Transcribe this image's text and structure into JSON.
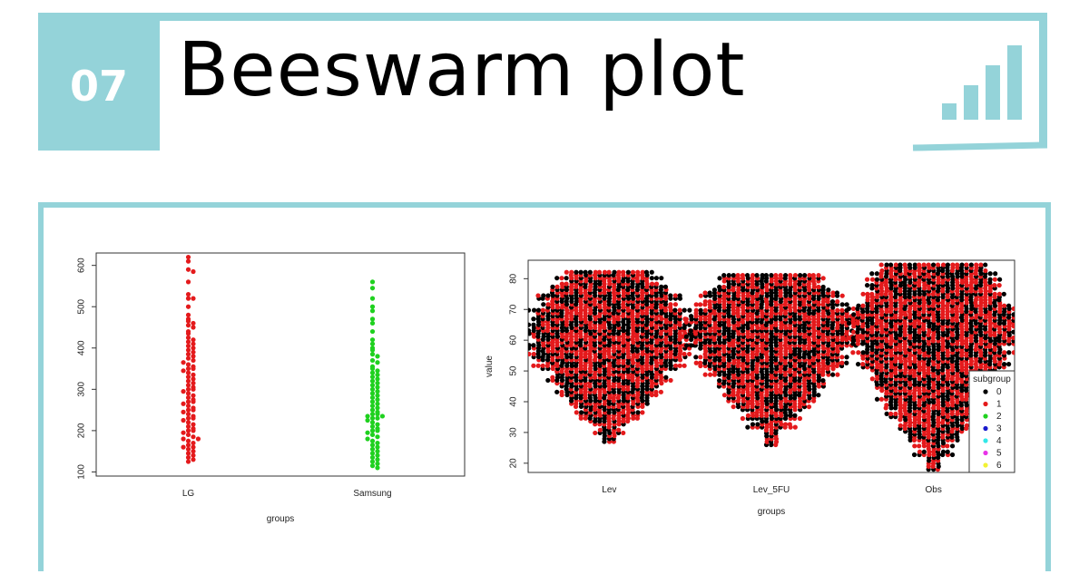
{
  "header": {
    "number": "07",
    "title": "Beeswarm plot",
    "icon": "bar-chart-icon",
    "accent_color": "#94d3d9"
  },
  "chart_data": [
    {
      "type": "scatter",
      "subtype": "beeswarm",
      "xlabel": "groups",
      "ylabel": "",
      "ylim": [
        90,
        630
      ],
      "yticks": [
        100,
        200,
        300,
        400,
        500,
        600
      ],
      "categories": [
        "LG",
        "Samsung"
      ],
      "series": [
        {
          "name": "LG",
          "color": "#e41a1c",
          "values": [
            620,
            610,
            590,
            585,
            560,
            530,
            520,
            520,
            500,
            480,
            470,
            465,
            460,
            455,
            450,
            440,
            435,
            425,
            420,
            415,
            410,
            405,
            400,
            395,
            390,
            385,
            380,
            375,
            370,
            365,
            360,
            355,
            350,
            350,
            345,
            340,
            335,
            330,
            325,
            320,
            315,
            310,
            305,
            300,
            300,
            295,
            290,
            285,
            280,
            275,
            270,
            270,
            265,
            260,
            255,
            250,
            250,
            245,
            240,
            235,
            230,
            230,
            225,
            220,
            215,
            210,
            205,
            200,
            200,
            195,
            190,
            185,
            180,
            180,
            175,
            170,
            165,
            160,
            160,
            155,
            150,
            145,
            140,
            135,
            130,
            125
          ]
        },
        {
          "name": "Samsung",
          "color": "#1fd11f",
          "values": [
            560,
            545,
            520,
            500,
            490,
            470,
            460,
            440,
            420,
            410,
            400,
            395,
            385,
            380,
            370,
            365,
            355,
            350,
            345,
            340,
            335,
            330,
            325,
            320,
            315,
            310,
            305,
            300,
            295,
            290,
            285,
            280,
            275,
            270,
            265,
            260,
            255,
            250,
            245,
            240,
            240,
            235,
            235,
            230,
            230,
            225,
            220,
            215,
            210,
            205,
            200,
            200,
            195,
            190,
            185,
            180,
            175,
            170,
            165,
            160,
            155,
            150,
            145,
            140,
            135,
            130,
            125,
            120,
            115,
            110
          ]
        }
      ]
    },
    {
      "type": "scatter",
      "subtype": "beeswarm",
      "xlabel": "groups",
      "ylabel": "value",
      "ylim": [
        17,
        86
      ],
      "yticks": [
        20,
        30,
        40,
        50,
        60,
        70,
        80
      ],
      "categories": [
        "Lev",
        "Lev_5FU",
        "Obs"
      ],
      "legend": {
        "title": "subgroup",
        "position": "bottom-right",
        "entries": [
          {
            "label": "0",
            "color": "#000000"
          },
          {
            "label": "1",
            "color": "#e41a1c"
          },
          {
            "label": "2",
            "color": "#1fd11f"
          },
          {
            "label": "3",
            "color": "#1a1acc"
          },
          {
            "label": "4",
            "color": "#33e8e8"
          },
          {
            "label": "5",
            "color": "#e833e8"
          },
          {
            "label": "6",
            "color": "#f2f233"
          }
        ]
      },
      "groups": [
        {
          "category": "Lev",
          "min": 27,
          "max": 83,
          "center": 62
        },
        {
          "category": "Lev_5FU",
          "min": 26,
          "max": 82,
          "center": 62
        },
        {
          "category": "Obs",
          "min": 18,
          "max": 85,
          "center": 64
        }
      ]
    }
  ]
}
